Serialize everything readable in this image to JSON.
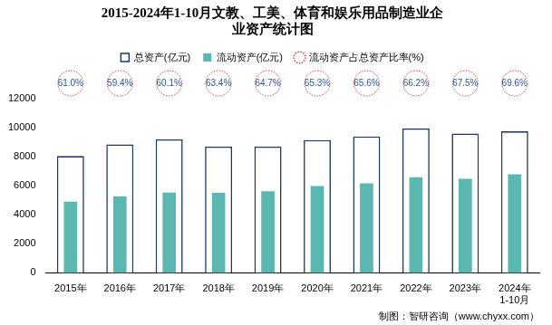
{
  "chart_data": {
    "type": "bar",
    "title": "2015-2024年1-10月文教、工美、体育和娱乐用品制造业企\n业资产统计图",
    "categories": [
      "2015年",
      "2016年",
      "2017年",
      "2018年",
      "2019年",
      "2020年",
      "2021年",
      "2022年",
      "2023年",
      "2024年\n1-10月"
    ],
    "series": [
      {
        "name": "总资产(亿元)",
        "color": "#1f3864",
        "values": [
          8050,
          8850,
          9200,
          8700,
          8700,
          9150,
          9400,
          9950,
          9600,
          9750
        ]
      },
      {
        "name": "流动资产(亿元)",
        "color": "#5bb8b0",
        "values": [
          4911,
          5257,
          5529,
          5516,
          5629,
          5975,
          6166,
          6587,
          6480,
          6786
        ]
      },
      {
        "name": "流动资产占总资产比率(%)",
        "type": "label",
        "marker": "circle",
        "line_style": "dotted",
        "color": "#e03c3c",
        "values": [
          61.0,
          59.4,
          60.1,
          63.4,
          64.7,
          65.3,
          65.6,
          66.2,
          67.5,
          69.6
        ],
        "value_labels": [
          "61.0%",
          "59.4%",
          "60.1%",
          "63.4%",
          "64.7%",
          "65.3%",
          "65.6%",
          "66.2%",
          "67.5%",
          "69.6%"
        ]
      }
    ],
    "ylim": [
      0,
      12000
    ],
    "yticks": [
      0,
      2000,
      4000,
      6000,
      8000,
      10000,
      12000
    ],
    "grid": false,
    "legend": "top",
    "annotations": [
      "制图：智研咨询（www.chyxx.com）"
    ]
  }
}
